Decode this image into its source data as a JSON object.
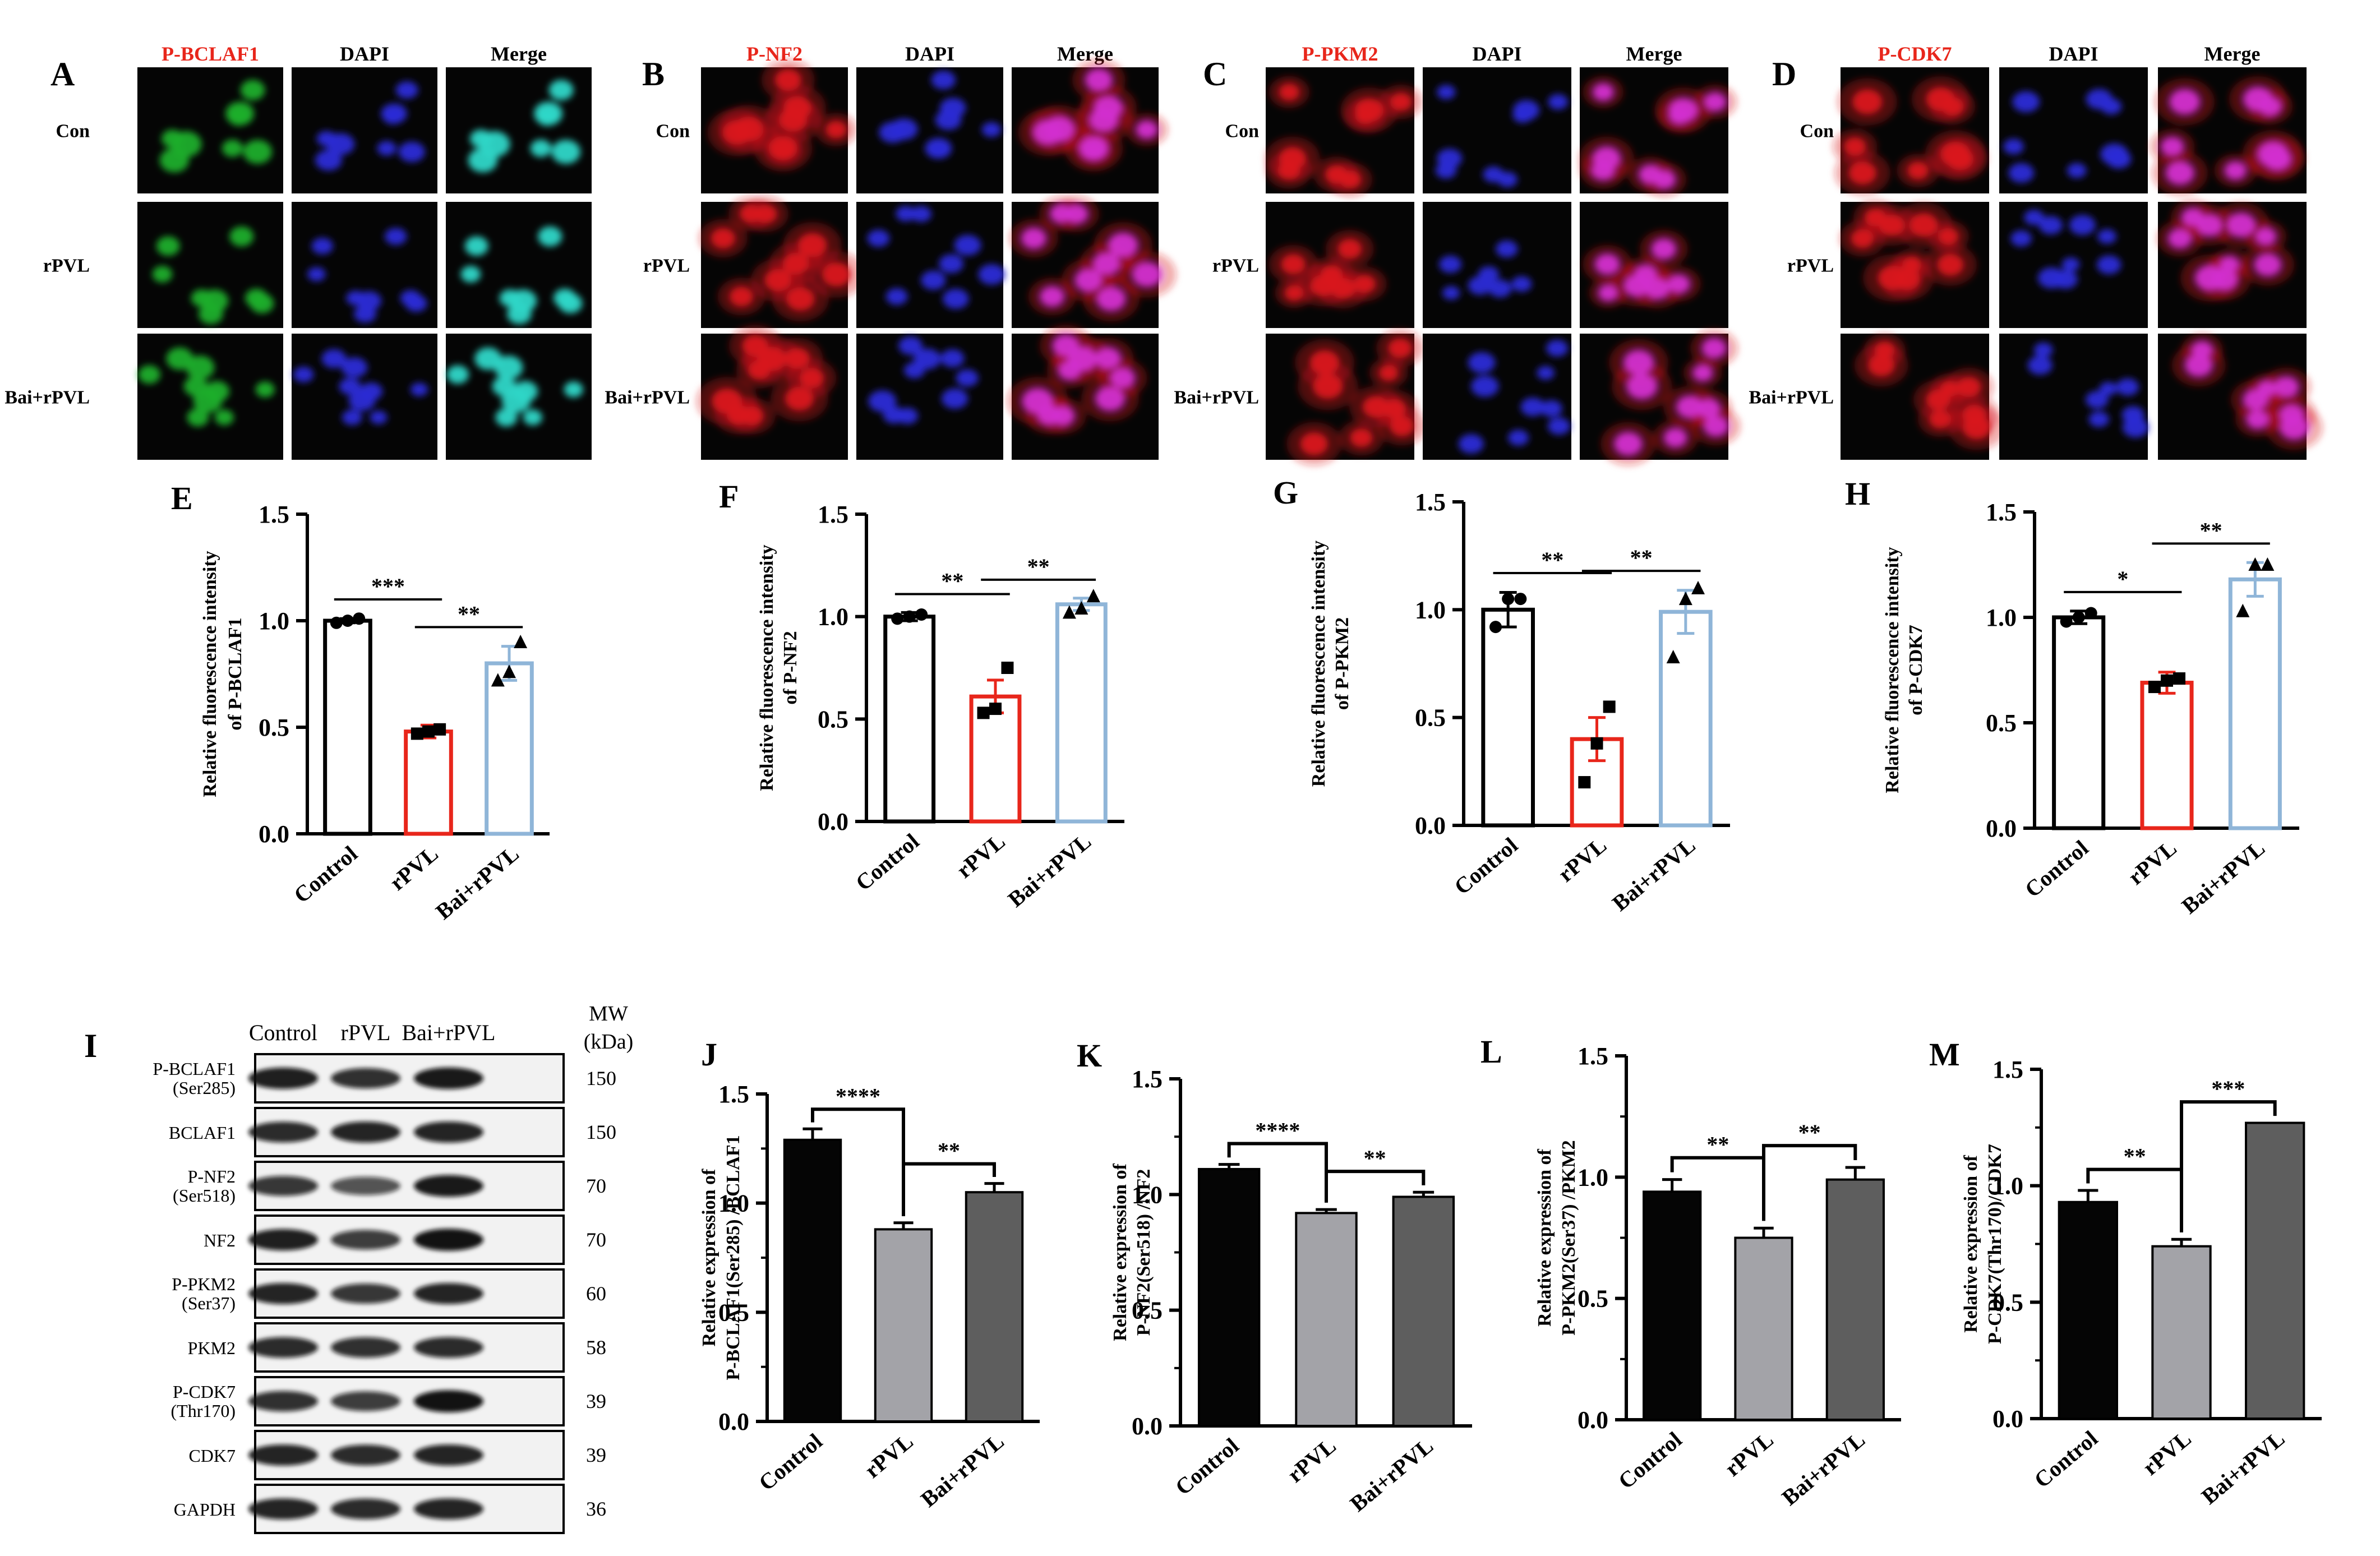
{
  "colors": {
    "black": "#000000",
    "red": "#e8261b",
    "lightblue": "#8fb5d8",
    "bar_black": "#050505",
    "bar_lightgrey": "#a3a3a8",
    "bar_darkgrey": "#5e5e5e",
    "channel_label_red": "#e8261b",
    "green_channel": "#1fae2c",
    "blue_channel": "#2a2cd6",
    "cyan_merge": "#2fd7c8",
    "red_channel": "#d9131c",
    "magenta_merge": "#d22fd0"
  },
  "micro_panels": [
    {
      "letter": "A",
      "marker": "P-BCLAF1",
      "cols": [
        "P-BCLAF1",
        "DAPI",
        "Merge"
      ],
      "rows": [
        "Con",
        "rPVL",
        "Bai+rPVL"
      ],
      "palette": [
        "green_channel",
        "blue_channel",
        "cyan_merge"
      ]
    },
    {
      "letter": "B",
      "marker": "P-NF2",
      "cols": [
        "P-NF2",
        "DAPI",
        "Merge"
      ],
      "rows": [
        "Con",
        "rPVL",
        "Bai+rPVL"
      ],
      "palette": [
        "red_channel",
        "blue_channel",
        "magenta_merge"
      ]
    },
    {
      "letter": "C",
      "marker": "P-PKM2",
      "cols": [
        "P-PKM2",
        "DAPI",
        "Merge"
      ],
      "rows": [
        "Con",
        "rPVL",
        "Bai+rPVL"
      ],
      "palette": [
        "red_channel",
        "blue_channel",
        "magenta_merge"
      ]
    },
    {
      "letter": "D",
      "marker": "P-CDK7",
      "cols": [
        "P-CDK7",
        "DAPI",
        "Merge"
      ],
      "rows": [
        "Con",
        "rPVL",
        "Bai+rPVL"
      ],
      "palette": [
        "red_channel",
        "blue_channel",
        "magenta_merge"
      ]
    }
  ],
  "chart_data": [
    {
      "panel": "E",
      "type": "bar",
      "style": "outline",
      "categories": [
        "Control",
        "rPVL",
        "Bai+rPVL"
      ],
      "values": [
        1.0,
        0.48,
        0.8
      ],
      "errors": [
        0.01,
        0.03,
        0.08
      ],
      "points": [
        [
          0.99,
          1.0,
          1.01
        ],
        [
          0.47,
          0.48,
          0.49
        ],
        [
          0.72,
          0.76,
          0.9
        ]
      ],
      "ylabel": [
        "Relative fluorescence intensity",
        "of P-BCLAF1"
      ],
      "ylim": [
        0,
        1.5
      ],
      "yticks": [
        "0.0",
        "0.5",
        "1.0",
        "1.5"
      ],
      "significance": [
        {
          "from": 0,
          "to": 1,
          "label": "***"
        },
        {
          "from": 1,
          "to": 2,
          "label": "**"
        }
      ]
    },
    {
      "panel": "F",
      "type": "bar",
      "style": "outline",
      "categories": [
        "Control",
        "rPVL",
        "Bai+rPVL"
      ],
      "values": [
        1.0,
        0.61,
        1.06
      ],
      "errors": [
        0.02,
        0.08,
        0.03
      ],
      "points": [
        [
          0.99,
          1.0,
          1.01
        ],
        [
          0.53,
          0.55,
          0.75
        ],
        [
          1.02,
          1.04,
          1.1
        ]
      ],
      "ylabel": [
        "Relative fluorescence intensity",
        "of P-NF2"
      ],
      "ylim": [
        0,
        1.5
      ],
      "yticks": [
        "0.0",
        "0.5",
        "1.0",
        "1.5"
      ],
      "significance": [
        {
          "from": 0,
          "to": 1,
          "label": "**"
        },
        {
          "from": 1,
          "to": 2,
          "label": "**"
        }
      ]
    },
    {
      "panel": "G",
      "type": "bar",
      "style": "outline",
      "categories": [
        "Control",
        "rPVL",
        "Bai+rPVL"
      ],
      "values": [
        1.0,
        0.4,
        0.99
      ],
      "errors": [
        0.08,
        0.1,
        0.1
      ],
      "points": [
        [
          0.92,
          1.05,
          1.05
        ],
        [
          0.2,
          0.38,
          0.55
        ],
        [
          0.78,
          1.05,
          1.1
        ]
      ],
      "ylabel": [
        "Relative fluorescence intensity",
        "of P-PKM2"
      ],
      "ylim": [
        0,
        1.5
      ],
      "yticks": [
        "0.0",
        "0.5",
        "1.0",
        "1.5"
      ],
      "significance": [
        {
          "from": 0,
          "to": 1,
          "label": "**"
        },
        {
          "from": 1,
          "to": 2,
          "label": "**"
        }
      ]
    },
    {
      "panel": "H",
      "type": "bar",
      "style": "outline",
      "categories": [
        "Control",
        "rPVL",
        "Bai+rPVL"
      ],
      "values": [
        1.0,
        0.69,
        1.18
      ],
      "errors": [
        0.03,
        0.05,
        0.08
      ],
      "points": [
        [
          0.98,
          1.0,
          1.02
        ],
        [
          0.67,
          0.7,
          0.71
        ],
        [
          1.03,
          1.25,
          1.25
        ]
      ],
      "ylabel": [
        "Relative fluorescence intensity",
        "of P-CDK7"
      ],
      "ylim": [
        0,
        1.5
      ],
      "yticks": [
        "0.0",
        "0.5",
        "1.0",
        "1.5"
      ],
      "significance": [
        {
          "from": 0,
          "to": 1,
          "label": "*"
        },
        {
          "from": 1,
          "to": 2,
          "label": "**"
        }
      ]
    },
    {
      "panel": "J",
      "type": "bar",
      "style": "filled",
      "categories": [
        "Control",
        "rPVL",
        "Bai+rPVL"
      ],
      "values": [
        1.29,
        0.88,
        1.05
      ],
      "errors": [
        0.05,
        0.03,
        0.04
      ],
      "ylabel": [
        "Relative expression of",
        "P-BCLAF1(Ser285) /BCLAF1"
      ],
      "ylim": [
        0,
        1.5
      ],
      "yticks": [
        "0.0",
        "0.5",
        "1.0",
        "1.5"
      ],
      "significance": [
        {
          "from": 0,
          "to": 1,
          "label": "****"
        },
        {
          "from": 1,
          "to": 2,
          "label": "**"
        }
      ]
    },
    {
      "panel": "K",
      "type": "bar",
      "style": "filled",
      "categories": [
        "Control",
        "rPVL",
        "Bai+rPVL"
      ],
      "values": [
        1.11,
        0.92,
        0.99
      ],
      "errors": [
        0.02,
        0.015,
        0.02
      ],
      "ylabel": [
        "Relative expression of",
        "P-NF2(Ser518) /NF2"
      ],
      "ylim": [
        0,
        1.5
      ],
      "yticks": [
        "0.0",
        "0.5",
        "1.0",
        "1.5"
      ],
      "significance": [
        {
          "from": 0,
          "to": 1,
          "label": "****"
        },
        {
          "from": 1,
          "to": 2,
          "label": "**"
        }
      ]
    },
    {
      "panel": "L",
      "type": "bar",
      "style": "filled",
      "categories": [
        "Control",
        "rPVL",
        "Bai+rPVL"
      ],
      "values": [
        0.94,
        0.75,
        0.99
      ],
      "errors": [
        0.05,
        0.04,
        0.05
      ],
      "ylabel": [
        "Relative expression of",
        "P-PKM2(Ser37) /PKM2"
      ],
      "ylim": [
        0,
        1.5
      ],
      "yticks": [
        "0.0",
        "0.5",
        "1.0",
        "1.5"
      ],
      "significance": [
        {
          "from": 0,
          "to": 1,
          "label": "**"
        },
        {
          "from": 1,
          "to": 2,
          "label": "**"
        }
      ]
    },
    {
      "panel": "M",
      "type": "bar",
      "style": "filled",
      "categories": [
        "Control",
        "rPVL",
        "Bai+rPVL"
      ],
      "values": [
        0.93,
        0.74,
        1.27
      ],
      "errors": [
        0.05,
        0.03,
        0.0
      ],
      "ylabel": [
        "Relative expression of",
        "P-CDK7(Thr170)/CDK7"
      ],
      "ylim": [
        0,
        1.5
      ],
      "yticks": [
        "0.0",
        "0.5",
        "1.0",
        "1.5"
      ],
      "significance": [
        {
          "from": 0,
          "to": 1,
          "label": "**"
        },
        {
          "from": 1,
          "to": 2,
          "label": "***"
        }
      ]
    }
  ],
  "western_blot": {
    "letter": "I",
    "lanes": [
      "Control",
      "rPVL",
      "Bai+rPVL"
    ],
    "mw_header": [
      "MW",
      "(kDa)"
    ],
    "bands": [
      {
        "name": [
          "P-BCLAF1",
          "(Ser285)"
        ],
        "mw": "150",
        "intensity": [
          0.85,
          0.7,
          0.9
        ]
      },
      {
        "name": [
          "BCLAF1"
        ],
        "mw": "150",
        "intensity": [
          0.75,
          0.8,
          0.8
        ]
      },
      {
        "name": [
          "P-NF2",
          "(Ser518)"
        ],
        "mw": "70",
        "intensity": [
          0.65,
          0.4,
          0.9
        ]
      },
      {
        "name": [
          "NF2"
        ],
        "mw": "70",
        "intensity": [
          0.85,
          0.6,
          0.95
        ]
      },
      {
        "name": [
          "P-PKM2",
          "(Ser37)"
        ],
        "mw": "60",
        "intensity": [
          0.8,
          0.65,
          0.8
        ]
      },
      {
        "name": [
          "PKM2"
        ],
        "mw": "58",
        "intensity": [
          0.75,
          0.7,
          0.75
        ]
      },
      {
        "name": [
          "P-CDK7",
          "(Thr170)"
        ],
        "mw": "39",
        "intensity": [
          0.7,
          0.6,
          0.95
        ]
      },
      {
        "name": [
          "CDK7"
        ],
        "mw": "39",
        "intensity": [
          0.8,
          0.75,
          0.8
        ]
      },
      {
        "name": [
          "GAPDH"
        ],
        "mw": "36",
        "intensity": [
          0.8,
          0.75,
          0.8
        ]
      }
    ]
  }
}
